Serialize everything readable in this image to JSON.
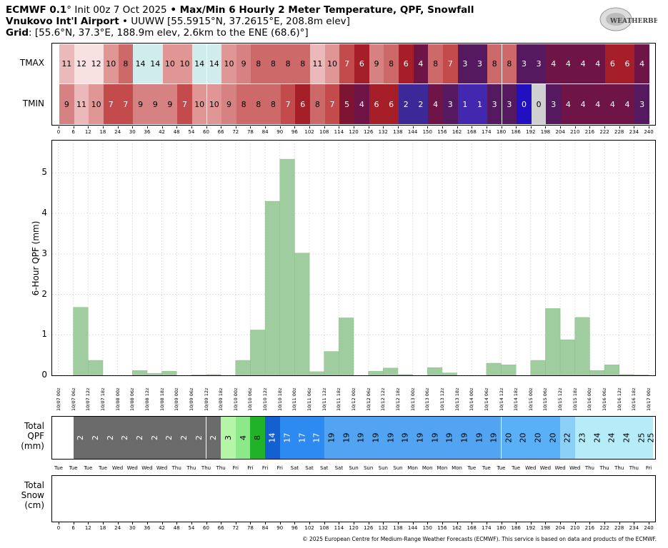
{
  "header": {
    "line1_model": "ECMWF 0.1",
    "line1_init": "° Init 00z 7 Oct 2025",
    "line1_bullet": " • ",
    "line1_title": "Max/Min 6 Hourly 2 Meter Temperature, QPF, Snowfall",
    "line2_name": "Vnukovo Int'l Airport",
    "line2_rest": " • UUWW [55.5915°N, 37.2615°E, 208.8m elev]",
    "line3_grid": "Grid",
    "line3_rest": ": [55.6°N, 37.3°E, 188.9m elev, 2.6km to the ENE (68.6)°]",
    "logo_text": "WEATHERBELL"
  },
  "footer": "© 2025 European Centre for Medium-Range Weather Forecasts (ECMWF). This service is based on data and products of the ECMWF.",
  "hour_ticks": [
    "0",
    "6",
    "12",
    "18",
    "24",
    "30",
    "36",
    "42",
    "48",
    "54",
    "60",
    "66",
    "72",
    "78",
    "84",
    "90",
    "96",
    "102",
    "108",
    "114",
    "120",
    "126",
    "132",
    "138",
    "144",
    "150",
    "156",
    "162",
    "168",
    "174",
    "180",
    "186",
    "192",
    "198",
    "204",
    "210",
    "216",
    "222",
    "228",
    "234",
    "240"
  ],
  "temp_panel": {
    "tmax_label": "TMAX",
    "tmin_label": "TMIN",
    "tmax": [
      11,
      12,
      12,
      10,
      8,
      14,
      14,
      10,
      10,
      14,
      14,
      10,
      9,
      8,
      8,
      8,
      8,
      11,
      10,
      7,
      6,
      9,
      8,
      6,
      4,
      8,
      7,
      3,
      3,
      8,
      8,
      3,
      3,
      4,
      4,
      4,
      4,
      6,
      6,
      4
    ],
    "tmin": [
      9,
      11,
      10,
      7,
      7,
      9,
      9,
      9,
      7,
      10,
      10,
      9,
      8,
      8,
      8,
      7,
      6,
      8,
      7,
      5,
      4,
      6,
      6,
      2,
      2,
      4,
      3,
      1,
      1,
      3,
      3,
      0,
      0,
      3,
      4,
      4,
      4,
      4,
      4,
      3
    ]
  },
  "chart_data": {
    "type": "bar",
    "ylabel": "6-Hour QPF (mm)",
    "ylim": [
      0,
      5.8
    ],
    "yticks": [
      0,
      1,
      2,
      3,
      4,
      5
    ],
    "grid": true,
    "x_labels": [
      "10/07 00z",
      "10/07 06z",
      "10/07 12z",
      "10/07 18z",
      "10/08 00z",
      "10/08 06z",
      "10/08 12z",
      "10/08 18z",
      "10/09 00z",
      "10/09 06z",
      "10/09 12z",
      "10/09 18z",
      "10/10 00z",
      "10/10 06z",
      "10/10 12z",
      "10/10 18z",
      "10/11 00z",
      "10/11 06z",
      "10/11 12z",
      "10/11 18z",
      "10/12 00z",
      "10/12 06z",
      "10/12 12z",
      "10/12 18z",
      "10/13 00z",
      "10/13 06z",
      "10/13 12z",
      "10/13 18z",
      "10/14 00z",
      "10/14 06z",
      "10/14 12z",
      "10/14 18z",
      "10/15 00z",
      "10/15 06z",
      "10/15 12z",
      "10/15 18z",
      "10/16 00z",
      "10/16 06z",
      "10/16 12z",
      "10/16 18z",
      "10/17 00z"
    ],
    "values": [
      0,
      1.68,
      0.37,
      0,
      0,
      0.12,
      0.05,
      0.1,
      0,
      0.01,
      0.02,
      0,
      0.37,
      1.12,
      4.3,
      5.34,
      3.02,
      0.09,
      0.59,
      1.42,
      0,
      0.1,
      0.18,
      0.02,
      0,
      0.19,
      0.06,
      0,
      0,
      0.3,
      0.26,
      0,
      0.37,
      1.65,
      0.88,
      1.43,
      0.12,
      0.26,
      0.02,
      0.01
    ],
    "bar_color": "#9fcd9f"
  },
  "total_qpf": {
    "label_line1": "Total",
    "label_line2": "QPF",
    "label_line3": "(mm)",
    "values": [
      "",
      "2",
      "2",
      "2",
      "2",
      "2",
      "2",
      "2",
      "2",
      "2",
      "2",
      "3",
      "4",
      "8",
      "14",
      "17",
      "17",
      "17",
      "19",
      "19",
      "19",
      "19",
      "19",
      "19",
      "19",
      "19",
      "19",
      "19",
      "19",
      "19",
      "20",
      "20",
      "20",
      "20",
      "22",
      "23",
      "24",
      "24",
      "24",
      "25",
      "25"
    ],
    "days": [
      "Tue",
      "Tue",
      "Tue",
      "Tue",
      "Wed",
      "Wed",
      "Wed",
      "Wed",
      "Thu",
      "Thu",
      "Thu",
      "Thu",
      "Fri",
      "Fri",
      "Fri",
      "Fri",
      "Sat",
      "Sat",
      "Sat",
      "Sat",
      "Sun",
      "Sun",
      "Sun",
      "Sun",
      "Mon",
      "Mon",
      "Mon",
      "Mon",
      "Tue",
      "Tue",
      "Tue",
      "Tue",
      "Wed",
      "Wed",
      "Wed",
      "Wed",
      "Thu",
      "Thu",
      "Thu",
      "Thu",
      "Fri"
    ]
  },
  "total_snow": {
    "label_line1": "Total",
    "label_line2": "Snow",
    "label_line3": "(cm)"
  }
}
